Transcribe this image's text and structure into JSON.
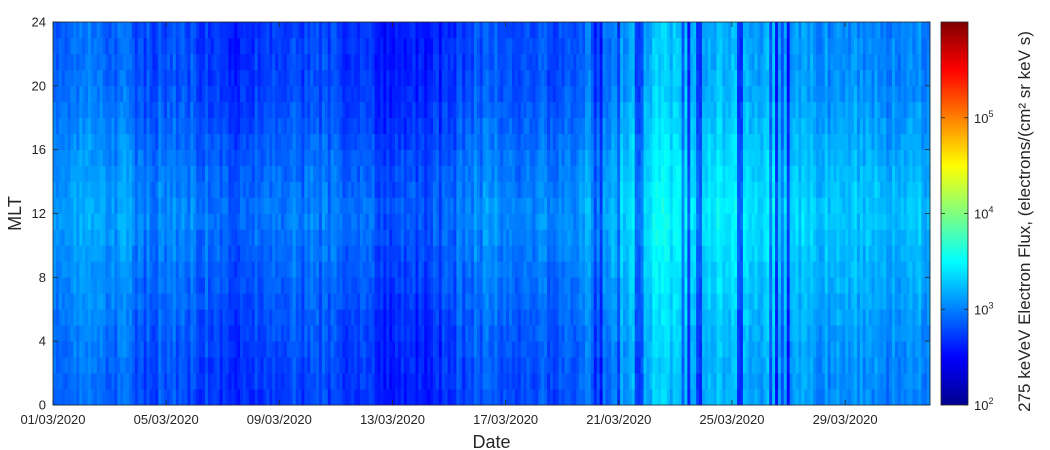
{
  "chart_data": {
    "type": "heatmap",
    "xlabel": "Date",
    "ylabel": "MLT",
    "x_ticks": [
      "01/03/2020",
      "05/03/2020",
      "09/03/2020",
      "13/03/2020",
      "17/03/2020",
      "21/03/2020",
      "25/03/2020",
      "29/03/2020"
    ],
    "x_range": [
      "01/03/2020",
      "01/04/2020"
    ],
    "y_ticks": [
      0,
      4,
      8,
      12,
      16,
      20,
      24
    ],
    "ylim": [
      0,
      24
    ],
    "colorbar": {
      "label": "275 keVeV Electron Flux, (electrons/(cm² sr keV s)",
      "scale": "log",
      "range": [
        100,
        1000000
      ],
      "colormap": "jet",
      "ticks": [
        {
          "base": "10",
          "exp": "2",
          "value": 100
        },
        {
          "base": "10",
          "exp": "3",
          "value": 1000
        },
        {
          "base": "10",
          "exp": "4",
          "value": 10000
        },
        {
          "base": "10",
          "exp": "5",
          "value": 100000
        }
      ]
    },
    "flux_profile_by_day": [
      {
        "date": "01/03/2020",
        "log10_flux": 2.95
      },
      {
        "date": "02/03/2020",
        "log10_flux": 3.0
      },
      {
        "date": "03/03/2020",
        "log10_flux": 3.0
      },
      {
        "date": "04/03/2020",
        "log10_flux": 2.85
      },
      {
        "date": "05/03/2020",
        "log10_flux": 2.95
      },
      {
        "date": "06/03/2020",
        "log10_flux": 2.8
      },
      {
        "date": "07/03/2020",
        "log10_flux": 2.75
      },
      {
        "date": "08/03/2020",
        "log10_flux": 2.8
      },
      {
        "date": "09/03/2020",
        "log10_flux": 2.85
      },
      {
        "date": "10/03/2020",
        "log10_flux": 2.85
      },
      {
        "date": "11/03/2020",
        "log10_flux": 2.8
      },
      {
        "date": "12/03/2020",
        "log10_flux": 2.7
      },
      {
        "date": "13/03/2020",
        "log10_flux": 2.65
      },
      {
        "date": "14/03/2020",
        "log10_flux": 2.7
      },
      {
        "date": "15/03/2020",
        "log10_flux": 2.85
      },
      {
        "date": "16/03/2020",
        "log10_flux": 2.95
      },
      {
        "date": "17/03/2020",
        "log10_flux": 2.85
      },
      {
        "date": "18/03/2020",
        "log10_flux": 2.9
      },
      {
        "date": "19/03/2020",
        "log10_flux": 2.95
      },
      {
        "date": "20/03/2020",
        "log10_flux": 3.05
      },
      {
        "date": "21/03/2020",
        "log10_flux": 3.3
      },
      {
        "date": "22/03/2020",
        "log10_flux": 3.35
      },
      {
        "date": "23/03/2020",
        "log10_flux": 3.3
      },
      {
        "date": "24/03/2020",
        "log10_flux": 3.3
      },
      {
        "date": "25/03/2020",
        "log10_flux": 3.25
      },
      {
        "date": "26/03/2020",
        "log10_flux": 3.25
      },
      {
        "date": "27/03/2020",
        "log10_flux": 3.2
      },
      {
        "date": "28/03/2020",
        "log10_flux": 3.15
      },
      {
        "date": "29/03/2020",
        "log10_flux": 3.15
      },
      {
        "date": "30/03/2020",
        "log10_flux": 3.1
      },
      {
        "date": "31/03/2020",
        "log10_flux": 3.1
      }
    ],
    "flux_profile_by_mlt": [
      {
        "mlt": 0,
        "offset": -0.1
      },
      {
        "mlt": 4,
        "offset": -0.05
      },
      {
        "mlt": 8,
        "offset": 0.05
      },
      {
        "mlt": 12,
        "offset": 0.15
      },
      {
        "mlt": 16,
        "offset": 0.05
      },
      {
        "mlt": 20,
        "offset": -0.08
      },
      {
        "mlt": 24,
        "offset": -0.1
      }
    ],
    "dropout_dates": [
      "20/03/2020",
      "21/03/2020",
      "23/03/2020",
      "24/03/2020",
      "25/03/2020",
      "26/03/2020"
    ]
  }
}
